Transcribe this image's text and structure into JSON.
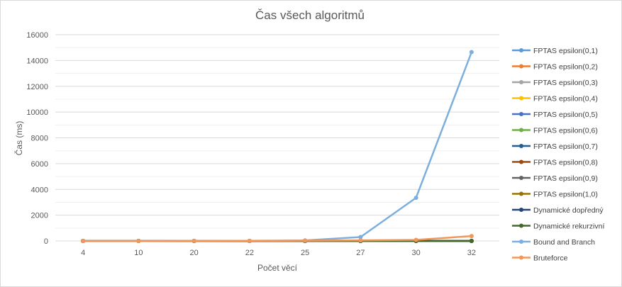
{
  "chart_data": {
    "type": "line",
    "title": "Čas všech algoritmů",
    "xlabel": "Počet věcí",
    "ylabel": "Čas (ms)",
    "categories": [
      "4",
      "10",
      "20",
      "22",
      "25",
      "27",
      "30",
      "32"
    ],
    "ylim": [
      0,
      16000
    ],
    "yticks": [
      0,
      2000,
      4000,
      6000,
      8000,
      10000,
      12000,
      14000,
      16000
    ],
    "grid": true,
    "legend_position": "right",
    "series": [
      {
        "name": "FPTAS epsilon(0,1)",
        "color": "#5b9bd5",
        "values": [
          0,
          0,
          1,
          1,
          2,
          3,
          5,
          6
        ]
      },
      {
        "name": "FPTAS epsilon(0,2)",
        "color": "#ed7d31",
        "values": [
          0,
          0,
          1,
          1,
          1,
          2,
          3,
          4
        ]
      },
      {
        "name": "FPTAS epsilon(0,3)",
        "color": "#a5a5a5",
        "values": [
          0,
          0,
          0,
          1,
          1,
          1,
          2,
          3
        ]
      },
      {
        "name": "FPTAS epsilon(0,4)",
        "color": "#ffc000",
        "values": [
          0,
          0,
          0,
          0,
          1,
          1,
          2,
          2
        ]
      },
      {
        "name": "FPTAS epsilon(0,5)",
        "color": "#4472c4",
        "values": [
          0,
          0,
          0,
          0,
          1,
          1,
          1,
          2
        ]
      },
      {
        "name": "FPTAS epsilon(0,6)",
        "color": "#70ad47",
        "values": [
          0,
          0,
          0,
          0,
          0,
          1,
          1,
          1
        ]
      },
      {
        "name": "FPTAS epsilon(0,7)",
        "color": "#255e91",
        "values": [
          0,
          0,
          0,
          0,
          0,
          1,
          1,
          1
        ]
      },
      {
        "name": "FPTAS epsilon(0,8)",
        "color": "#9e480e",
        "values": [
          0,
          0,
          0,
          0,
          0,
          0,
          1,
          1
        ]
      },
      {
        "name": "FPTAS epsilon(0,9)",
        "color": "#636363",
        "values": [
          0,
          0,
          0,
          0,
          0,
          0,
          1,
          1
        ]
      },
      {
        "name": "FPTAS epsilon(1,0)",
        "color": "#997300",
        "values": [
          0,
          0,
          0,
          0,
          0,
          0,
          1,
          1
        ]
      },
      {
        "name": "Dynamické dopředný",
        "color": "#264478",
        "values": [
          0,
          0,
          1,
          1,
          1,
          1,
          2,
          2
        ]
      },
      {
        "name": "Dynamické rekurzivní",
        "color": "#43682b",
        "values": [
          0,
          0,
          1,
          1,
          1,
          1,
          2,
          2
        ]
      },
      {
        "name": "Bound and Branch",
        "color": "#7cafdd",
        "values": [
          0,
          2,
          5,
          10,
          40,
          300,
          3350,
          14650
        ]
      },
      {
        "name": "Bruteforce",
        "color": "#f1975a",
        "values": [
          0,
          1,
          5,
          10,
          30,
          50,
          80,
          380
        ]
      }
    ]
  }
}
